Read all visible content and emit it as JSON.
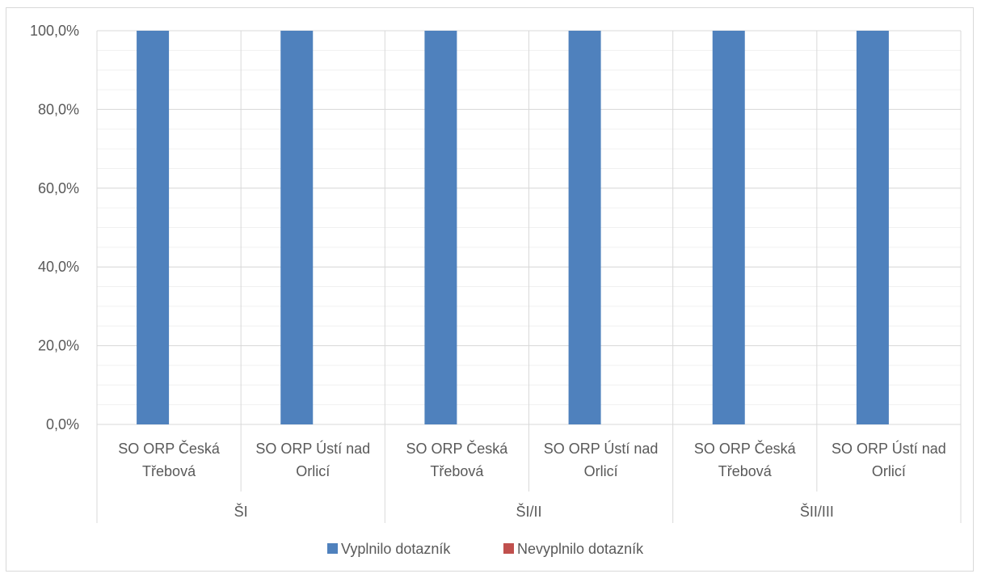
{
  "chart_data": {
    "type": "bar",
    "groups": [
      {
        "label": "ŠI",
        "categories": [
          "SO ORP Česká Třebová",
          "SO ORP Ústí nad Orlicí"
        ]
      },
      {
        "label": "ŠI/II",
        "categories": [
          "SO ORP Česká Třebová",
          "SO ORP Ústí nad Orlicí"
        ]
      },
      {
        "label": "ŠII/III",
        "categories": [
          "SO ORP Česká Třebová",
          "SO ORP Ústí nad Orlicí"
        ]
      }
    ],
    "category_lines": [
      [
        "SO ORP Česká",
        "Třebová"
      ],
      [
        "SO ORP Ústí nad",
        "Orlicí"
      ],
      [
        "SO ORP Česká",
        "Třebová"
      ],
      [
        "SO ORP Ústí nad",
        "Orlicí"
      ],
      [
        "SO ORP Česká",
        "Třebová"
      ],
      [
        "SO ORP Ústí nad",
        "Orlicí"
      ]
    ],
    "series": [
      {
        "name": "Vyplnilo dotazník",
        "color": "#4f81bd",
        "values": [
          100,
          100,
          100,
          100,
          100,
          100
        ]
      },
      {
        "name": "Nevyplnilo dotazník",
        "color": "#c0504d",
        "values": [
          0,
          0,
          0,
          0,
          0,
          0
        ]
      }
    ],
    "yticks": [
      0,
      20,
      40,
      60,
      80,
      100
    ],
    "ytick_labels": [
      "0,0%",
      "20,0%",
      "40,0%",
      "60,0%",
      "80,0%",
      "100,0%"
    ],
    "ylim": [
      0,
      100
    ],
    "grid": true,
    "legend_position": "bottom",
    "title": "",
    "xlabel": "",
    "ylabel": ""
  }
}
